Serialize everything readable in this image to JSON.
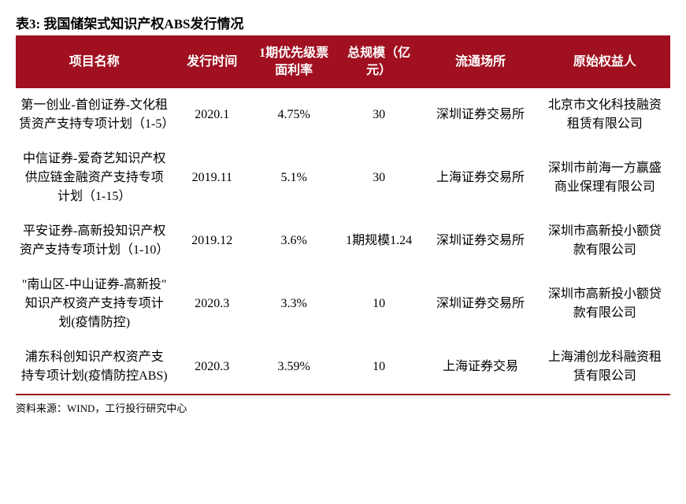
{
  "title": "表3:  我国储架式知识产权ABS发行情况",
  "headers": {
    "name": "项目名称",
    "date": "发行时间",
    "rate": "1期优先级票面利率",
    "scale": "总规模（亿元）",
    "exchange": "流通场所",
    "originator": "原始权益人"
  },
  "rows": [
    {
      "name": "第一创业-首创证券-文化租赁资产支持专项计划（1-5）",
      "date": "2020.1",
      "rate": "4.75%",
      "scale": "30",
      "exchange": "深圳证券交易所",
      "originator": "北京市文化科技融资租赁有限公司"
    },
    {
      "name": "中信证券-爱奇艺知识产权供应链金融资产支持专项计划（1-15）",
      "date": "2019.11",
      "rate": "5.1%",
      "scale": "30",
      "exchange": "上海证券交易所",
      "originator": "深圳市前海一方赢盛商业保理有限公司"
    },
    {
      "name": "平安证券-高新投知识产权资产支持专项计划（1-10）",
      "date": "2019.12",
      "rate": "3.6%",
      "scale": "1期规模1.24",
      "exchange": "深圳证券交易所",
      "originator": "深圳市高新投小额贷款有限公司"
    },
    {
      "name": "\"南山区-中山证券-高新投\" 知识产权资产支持专项计划(疫情防控)",
      "date": "2020.3",
      "rate": "3.3%",
      "scale": "10",
      "exchange": "深圳证券交易所",
      "originator": "深圳市高新投小额贷款有限公司"
    },
    {
      "name": "浦东科创知识产权资产支持专项计划(疫情防控ABS)",
      "date": "2020.3",
      "rate": "3.59%",
      "scale": "10",
      "exchange": "上海证券交易",
      "originator": "上海浦创龙科融资租赁有限公司"
    }
  ],
  "source": "资料来源：WIND，工行投行研究中心",
  "style": {
    "header_bg": "#a01020",
    "header_text": "#ffffff",
    "border_color": "#a01020",
    "body_bg": "#ffffff",
    "text_color": "#000000",
    "title_fontsize": 17,
    "header_fontsize": 16,
    "cell_fontsize": 16,
    "source_fontsize": 13
  }
}
